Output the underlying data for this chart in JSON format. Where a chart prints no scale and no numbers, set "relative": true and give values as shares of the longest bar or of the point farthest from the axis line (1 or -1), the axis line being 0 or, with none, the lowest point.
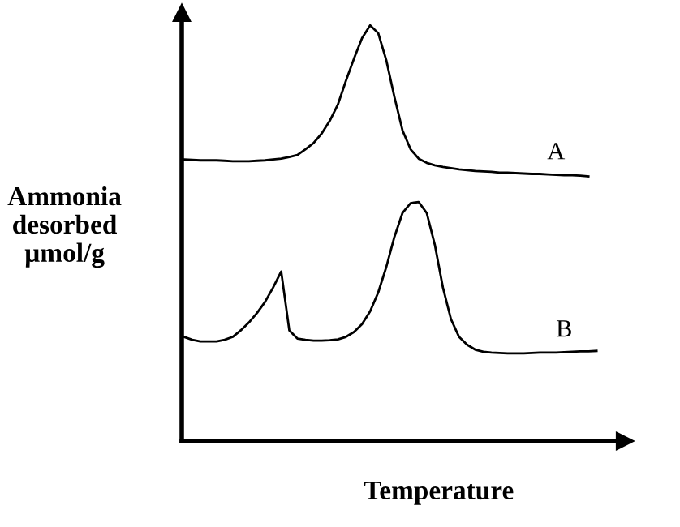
{
  "chart_data": {
    "type": "line",
    "relative": true,
    "xlabel": "Temperature",
    "ylabel": "Ammonia\ndesorbed\nµmol/g",
    "legend": false,
    "grid": false,
    "marker": "none",
    "line_style": "solid",
    "categories": [
      null,
      null,
      null,
      null,
      null,
      null,
      null,
      null,
      null,
      null,
      null,
      null,
      null,
      null,
      null,
      null,
      null,
      null,
      null,
      null,
      null,
      null,
      null,
      null,
      null,
      null,
      null,
      null,
      null,
      null,
      null,
      null,
      null,
      null,
      null,
      null,
      null,
      null,
      null,
      null,
      null,
      null,
      null,
      null,
      null,
      null,
      null,
      null,
      null,
      null,
      null,
      null
    ],
    "series": [
      {
        "name": "A",
        "color": "#000000",
        "values": [
          0.674,
          0.673,
          0.672,
          0.672,
          0.672,
          0.671,
          0.67,
          0.67,
          0.67,
          0.671,
          0.672,
          0.674,
          0.676,
          0.68,
          0.685,
          0.699,
          0.714,
          0.737,
          0.768,
          0.807,
          0.865,
          0.919,
          0.969,
          1,
          0.981,
          0.915,
          0.826,
          0.745,
          0.699,
          0.676,
          0.666,
          0.66,
          0.656,
          0.653,
          0.65,
          0.648,
          0.646,
          0.645,
          0.644,
          0.642,
          0.642,
          0.641,
          0.64,
          0.639,
          0.639,
          0.638,
          0.637,
          0.636,
          0.636,
          0.635,
          0.633,
          null
        ]
      },
      {
        "name": "B",
        "color": "#000000",
        "values": [
          0.243,
          0.236,
          0.232,
          0.232,
          0.232,
          0.236,
          0.243,
          0.259,
          0.278,
          0.301,
          0.328,
          0.363,
          0.402,
          0.259,
          0.239,
          0.236,
          0.234,
          0.234,
          0.235,
          0.237,
          0.243,
          0.255,
          0.274,
          0.305,
          0.351,
          0.413,
          0.486,
          0.544,
          0.568,
          0.571,
          0.544,
          0.467,
          0.363,
          0.286,
          0.243,
          0.224,
          0.212,
          0.207,
          0.205,
          0.204,
          0.203,
          0.203,
          0.203,
          0.204,
          0.205,
          0.205,
          0.205,
          0.206,
          0.207,
          0.208,
          0.208,
          0.209
        ]
      }
    ]
  }
}
